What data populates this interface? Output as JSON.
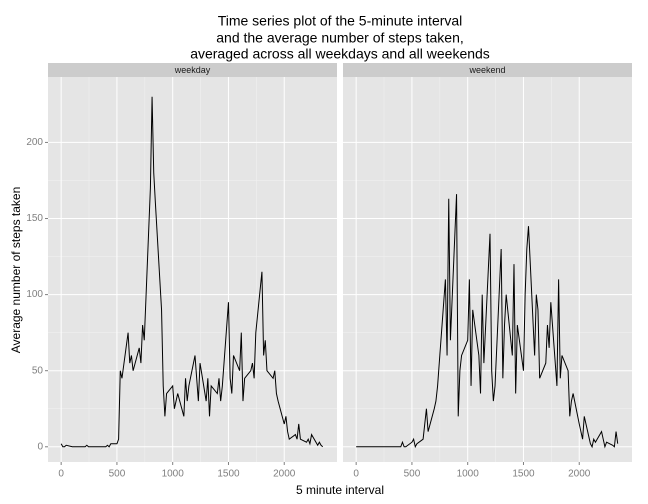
{
  "chart_data": {
    "type": "line",
    "title": [
      "Time series plot of the 5-minute interval",
      "and the average number of steps taken,",
      "averaged across all weekdays and all weekends"
    ],
    "xlabel": "5 minute interval",
    "ylabel": "Average number of steps taken",
    "xlim": [
      -118,
      2473
    ],
    "ylim": [
      -10,
      243
    ],
    "xticks": [
      0,
      500,
      1000,
      1500,
      2000
    ],
    "yticks": [
      0,
      50,
      100,
      150,
      200
    ],
    "grid": true,
    "facets": true,
    "x": [
      0,
      15,
      30,
      45,
      100,
      115,
      130,
      145,
      200,
      215,
      230,
      245,
      300,
      315,
      330,
      345,
      400,
      415,
      430,
      445,
      500,
      515,
      530,
      545,
      600,
      615,
      630,
      645,
      700,
      715,
      730,
      745,
      800,
      815,
      830,
      845,
      900,
      915,
      930,
      945,
      1000,
      1015,
      1030,
      1045,
      1100,
      1115,
      1130,
      1145,
      1200,
      1215,
      1230,
      1245,
      1300,
      1315,
      1330,
      1345,
      1400,
      1415,
      1430,
      1445,
      1500,
      1515,
      1530,
      1545,
      1600,
      1615,
      1630,
      1645,
      1700,
      1715,
      1730,
      1745,
      1800,
      1815,
      1830,
      1845,
      1900,
      1915,
      1930,
      1945,
      2000,
      2015,
      2030,
      2045,
      2100,
      2115,
      2130,
      2145,
      2200,
      2215,
      2230,
      2245,
      2300,
      2315,
      2330,
      2345
    ],
    "series": [
      {
        "name": "weekday",
        "color": "#000000",
        "values": [
          2,
          0,
          0,
          1,
          0,
          0,
          0,
          0,
          0,
          0,
          1,
          0,
          0,
          0,
          0,
          0,
          0,
          1,
          0,
          2,
          2,
          5,
          50,
          45,
          75,
          55,
          60,
          50,
          65,
          55,
          80,
          70,
          170,
          230,
          180,
          160,
          90,
          40,
          20,
          35,
          40,
          25,
          30,
          35,
          20,
          45,
          30,
          40,
          60,
          45,
          30,
          55,
          30,
          45,
          20,
          40,
          35,
          45,
          30,
          40,
          95,
          45,
          35,
          60,
          50,
          75,
          30,
          45,
          50,
          55,
          45,
          75,
          115,
          60,
          70,
          50,
          45,
          50,
          35,
          30,
          15,
          20,
          10,
          5,
          8,
          5,
          15,
          5,
          3,
          5,
          2,
          8,
          1,
          3,
          1,
          0
        ]
      },
      {
        "name": "weekend",
        "color": "#000000",
        "values": [
          0,
          0,
          0,
          0,
          0,
          0,
          0,
          0,
          0,
          0,
          0,
          0,
          0,
          0,
          0,
          0,
          0,
          3,
          0,
          0,
          3,
          5,
          0,
          2,
          5,
          15,
          25,
          10,
          25,
          30,
          40,
          55,
          110,
          60,
          163,
          70,
          166,
          20,
          50,
          60,
          70,
          110,
          40,
          90,
          60,
          35,
          100,
          55,
          140,
          50,
          30,
          40,
          130,
          45,
          80,
          100,
          60,
          120,
          35,
          80,
          50,
          100,
          130,
          145,
          60,
          100,
          90,
          45,
          55,
          80,
          65,
          95,
          40,
          110,
          45,
          60,
          50,
          20,
          30,
          35,
          15,
          10,
          5,
          20,
          2,
          0,
          5,
          3,
          10,
          5,
          0,
          3,
          1,
          0,
          10,
          2
        ]
      }
    ]
  }
}
